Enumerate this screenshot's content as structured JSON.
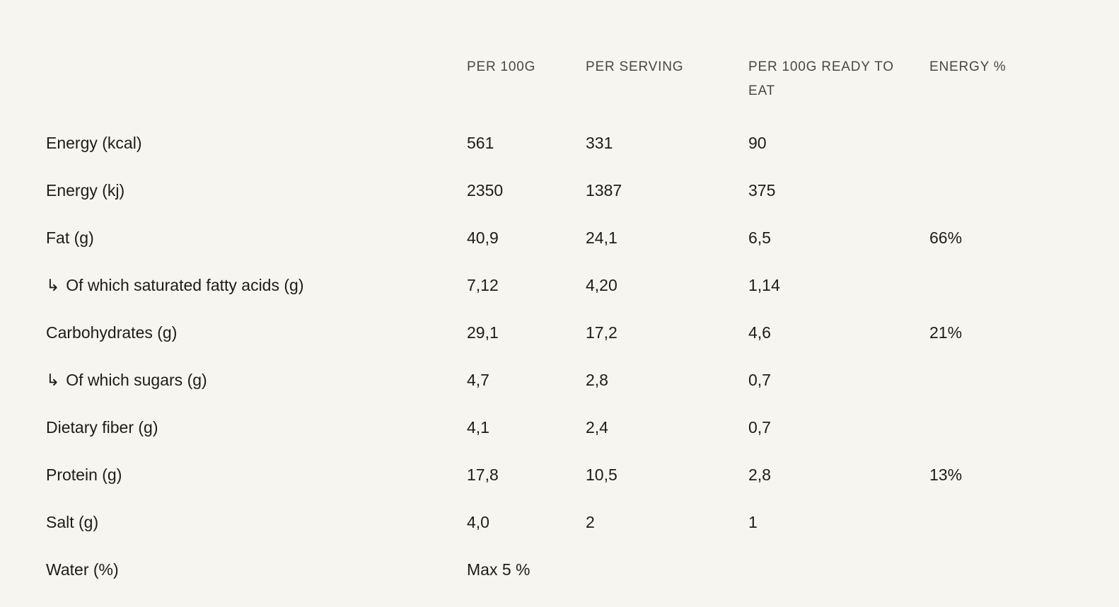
{
  "page": {
    "background_color": "#f7f5ef",
    "text_color": "#1d1c1a",
    "header_color": "#4a4843"
  },
  "nutrition_table": {
    "column_headers": {
      "per_100g": "PER 100G",
      "per_serving": "PER SERVING",
      "per_100g_ready_to_eat": "PER 100G READY TO EAT",
      "energy_percent": "ENERGY %"
    },
    "sub_item_arrow_icon": "↳",
    "rows": [
      {
        "label": "Energy (kcal)",
        "sub_item": false,
        "per_100g": "561",
        "per_serving": "331",
        "per_100g_ready_to_eat": "90",
        "energy_percent": ""
      },
      {
        "label": "Energy (kj)",
        "sub_item": false,
        "per_100g": "2350",
        "per_serving": "1387",
        "per_100g_ready_to_eat": "375",
        "energy_percent": ""
      },
      {
        "label": "Fat (g)",
        "sub_item": false,
        "per_100g": "40,9",
        "per_serving": "24,1",
        "per_100g_ready_to_eat": "6,5",
        "energy_percent": "66%"
      },
      {
        "label": "Of which saturated fatty acids (g)",
        "sub_item": true,
        "per_100g": "7,12",
        "per_serving": "4,20",
        "per_100g_ready_to_eat": "1,14",
        "energy_percent": ""
      },
      {
        "label": "Carbohydrates (g)",
        "sub_item": false,
        "per_100g": "29,1",
        "per_serving": "17,2",
        "per_100g_ready_to_eat": "4,6",
        "energy_percent": "21%"
      },
      {
        "label": "Of which sugars (g)",
        "sub_item": true,
        "per_100g": "4,7",
        "per_serving": "2,8",
        "per_100g_ready_to_eat": "0,7",
        "energy_percent": ""
      },
      {
        "label": "Dietary fiber (g)",
        "sub_item": false,
        "per_100g": "4,1",
        "per_serving": "2,4",
        "per_100g_ready_to_eat": "0,7",
        "energy_percent": ""
      },
      {
        "label": "Protein (g)",
        "sub_item": false,
        "per_100g": "17,8",
        "per_serving": "10,5",
        "per_100g_ready_to_eat": "2,8",
        "energy_percent": "13%"
      },
      {
        "label": "Salt (g)",
        "sub_item": false,
        "per_100g": "4,0",
        "per_serving": "2",
        "per_100g_ready_to_eat": "1",
        "energy_percent": ""
      },
      {
        "label": "Water (%)",
        "sub_item": false,
        "per_100g": "Max 5 %",
        "per_serving": "",
        "per_100g_ready_to_eat": "",
        "energy_percent": ""
      }
    ]
  }
}
